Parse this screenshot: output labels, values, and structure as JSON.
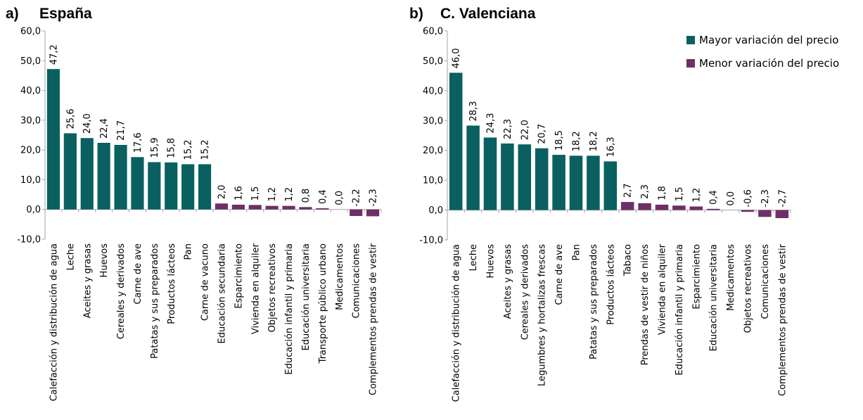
{
  "colors": {
    "mayor": "#0a6060",
    "menor": "#6e2f66",
    "axis": "#a6a6a6"
  },
  "legend": {
    "mayor_label": "Mayor variación del precio",
    "menor_label": "Menor variación del precio"
  },
  "chart_data": [
    {
      "type": "bar",
      "panel": "a)",
      "title": "España",
      "ylim": [
        -10,
        60
      ],
      "yticks": [
        "-10,0",
        "0,0",
        "10,0",
        "20,0",
        "30,0",
        "40,0",
        "50,0",
        "60,0"
      ],
      "categories": [
        "Calefacción y distribución de agua",
        "Leche",
        "Aceites y grasas",
        "Huevos",
        "Cereales y derivados",
        "Carne de ave",
        "Patatas y sus preparados",
        "Productos lácteos",
        "Pan",
        "Carne de vacuno",
        "Educación secundaria",
        "Esparcimiento",
        "Vivienda en alquiler",
        "Objetos recreativos",
        "Educación infantil y primaria",
        "Educación universitaria",
        "Transporte público urbano",
        "Medicamentos",
        "Comunicaciones",
        "Complementos prendas de vestir"
      ],
      "values": [
        47.2,
        25.6,
        24.0,
        22.4,
        21.7,
        17.6,
        15.9,
        15.8,
        15.2,
        15.2,
        2.0,
        1.6,
        1.5,
        1.2,
        1.2,
        0.8,
        0.4,
        0.0,
        -2.2,
        -2.3
      ],
      "value_labels": [
        "47,2",
        "25,6",
        "24,0",
        "22,4",
        "21,7",
        "17,6",
        "15,9",
        "15,8",
        "15,2",
        "15,2",
        "2,0",
        "1,6",
        "1,5",
        "1,2",
        "1,2",
        "0,8",
        "0,4",
        "0,0",
        "-2,2",
        "-2,3"
      ],
      "group": [
        "mayor",
        "mayor",
        "mayor",
        "mayor",
        "mayor",
        "mayor",
        "mayor",
        "mayor",
        "mayor",
        "mayor",
        "menor",
        "menor",
        "menor",
        "menor",
        "menor",
        "menor",
        "menor",
        "menor",
        "menor",
        "menor"
      ]
    },
    {
      "type": "bar",
      "panel": "b)",
      "title": "C. Valenciana",
      "ylim": [
        -10,
        60
      ],
      "yticks": [
        "-10,0",
        "0,0",
        "10,0",
        "20,0",
        "30,0",
        "40,0",
        "50,0",
        "60,0"
      ],
      "categories": [
        "Calefacción y distribución de agua",
        "Leche",
        "Huevos",
        "Aceites y grasas",
        "Cereales y derivados",
        "Legumbres y hortalizas frescas",
        "Carne de ave",
        "Pan",
        "Patatas y sus preparados",
        "Productos lácteos",
        "Tabaco",
        "Prendas de vestir de niños",
        "Vivienda en alquiler",
        "Educación infantil y primaria",
        "Esparcimiento",
        "Educación universitaria",
        "Medicamentos",
        "Objetos recreativos",
        "Comunicaciones",
        "Complementos prendas de vestir"
      ],
      "values": [
        46.0,
        28.3,
        24.3,
        22.3,
        22.0,
        20.7,
        18.5,
        18.2,
        18.2,
        16.3,
        2.7,
        2.3,
        1.8,
        1.5,
        1.2,
        0.4,
        0.0,
        -0.6,
        -2.3,
        -2.7
      ],
      "value_labels": [
        "46,0",
        "28,3",
        "24,3",
        "22,3",
        "22,0",
        "20,7",
        "18,5",
        "18,2",
        "18,2",
        "16,3",
        "2,7",
        "2,3",
        "1,8",
        "1,5",
        "1,2",
        "0,4",
        "0,0",
        "-0,6",
        "-2,3",
        "-2,7"
      ],
      "group": [
        "mayor",
        "mayor",
        "mayor",
        "mayor",
        "mayor",
        "mayor",
        "mayor",
        "mayor",
        "mayor",
        "mayor",
        "menor",
        "menor",
        "menor",
        "menor",
        "menor",
        "menor",
        "menor",
        "menor",
        "menor",
        "menor"
      ]
    }
  ]
}
